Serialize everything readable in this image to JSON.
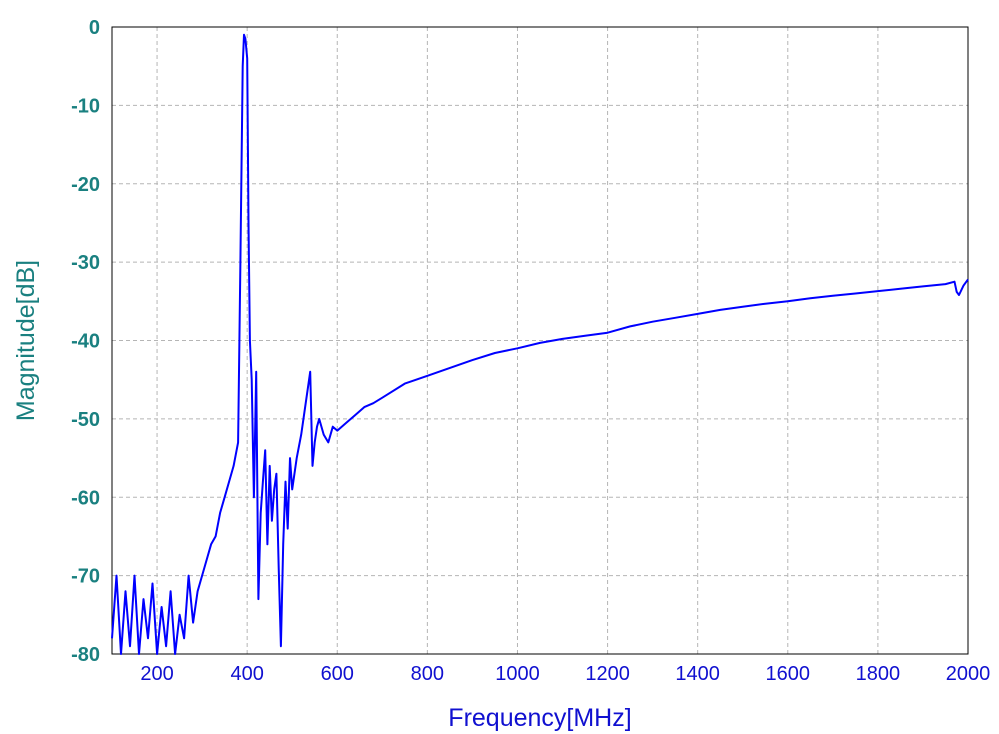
{
  "chart_data": {
    "type": "line",
    "xlabel": "Frequency[MHz]",
    "ylabel": "Magnitude[dB]",
    "xlim": [
      100,
      2000
    ],
    "ylim": [
      -80,
      0
    ],
    "xticks": [
      "200",
      "400",
      "600",
      "800",
      "1000",
      "1200",
      "1400",
      "1600",
      "1800",
      "2000"
    ],
    "yticks": [
      "0",
      "-10",
      "-20",
      "-30",
      "-40",
      "-50",
      "-60",
      "-70",
      "-80"
    ],
    "grid": true,
    "line_color": "#0000ff",
    "series": [
      {
        "x": [
          100,
          110,
          120,
          130,
          140,
          150,
          160,
          170,
          180,
          190,
          200,
          210,
          220,
          230,
          240,
          250,
          260,
          270,
          280,
          290,
          300,
          310,
          320,
          330,
          340,
          350,
          360,
          370,
          380,
          385,
          390,
          393,
          396,
          400,
          403,
          406,
          410,
          415,
          420,
          425,
          430,
          435,
          440,
          445,
          450,
          455,
          460,
          465,
          470,
          475,
          480,
          485,
          490,
          495,
          500,
          510,
          520,
          530,
          540,
          545,
          550,
          555,
          560,
          570,
          580,
          590,
          600,
          620,
          640,
          660,
          680,
          700,
          750,
          800,
          850,
          900,
          950,
          1000,
          1050,
          1100,
          1150,
          1200,
          1250,
          1300,
          1350,
          1400,
          1450,
          1500,
          1550,
          1600,
          1650,
          1700,
          1750,
          1800,
          1850,
          1900,
          1950,
          1970,
          1975,
          1980,
          1990,
          2000
        ],
        "y": [
          -78,
          -70,
          -80,
          -72,
          -79,
          -70,
          -80,
          -73,
          -78,
          -71,
          -80,
          -74,
          -79,
          -72,
          -80,
          -75,
          -78,
          -70,
          -76,
          -72,
          -70,
          -68,
          -66,
          -65,
          -62,
          -60,
          -58,
          -56,
          -53,
          -30,
          -5,
          -1,
          -1.5,
          -4,
          -25,
          -40,
          -45,
          -60,
          -44,
          -73,
          -62,
          -58,
          -54,
          -66,
          -56,
          -63,
          -59,
          -57,
          -69,
          -79,
          -66,
          -58,
          -64,
          -55,
          -59,
          -55,
          -52,
          -48,
          -44,
          -56,
          -53,
          -51,
          -50,
          -52,
          -53,
          -51,
          -51.5,
          -50.5,
          -49.5,
          -48.5,
          -48,
          -47.3,
          -45.5,
          -44.5,
          -43.5,
          -42.5,
          -41.6,
          -41,
          -40.3,
          -39.8,
          -39.4,
          -39,
          -38.2,
          -37.6,
          -37.1,
          -36.6,
          -36.1,
          -35.7,
          -35.3,
          -35,
          -34.6,
          -34.3,
          -34,
          -33.7,
          -33.4,
          -33.1,
          -32.8,
          -32.5,
          -33.8,
          -34.2,
          -33,
          -32.2
        ]
      }
    ]
  }
}
